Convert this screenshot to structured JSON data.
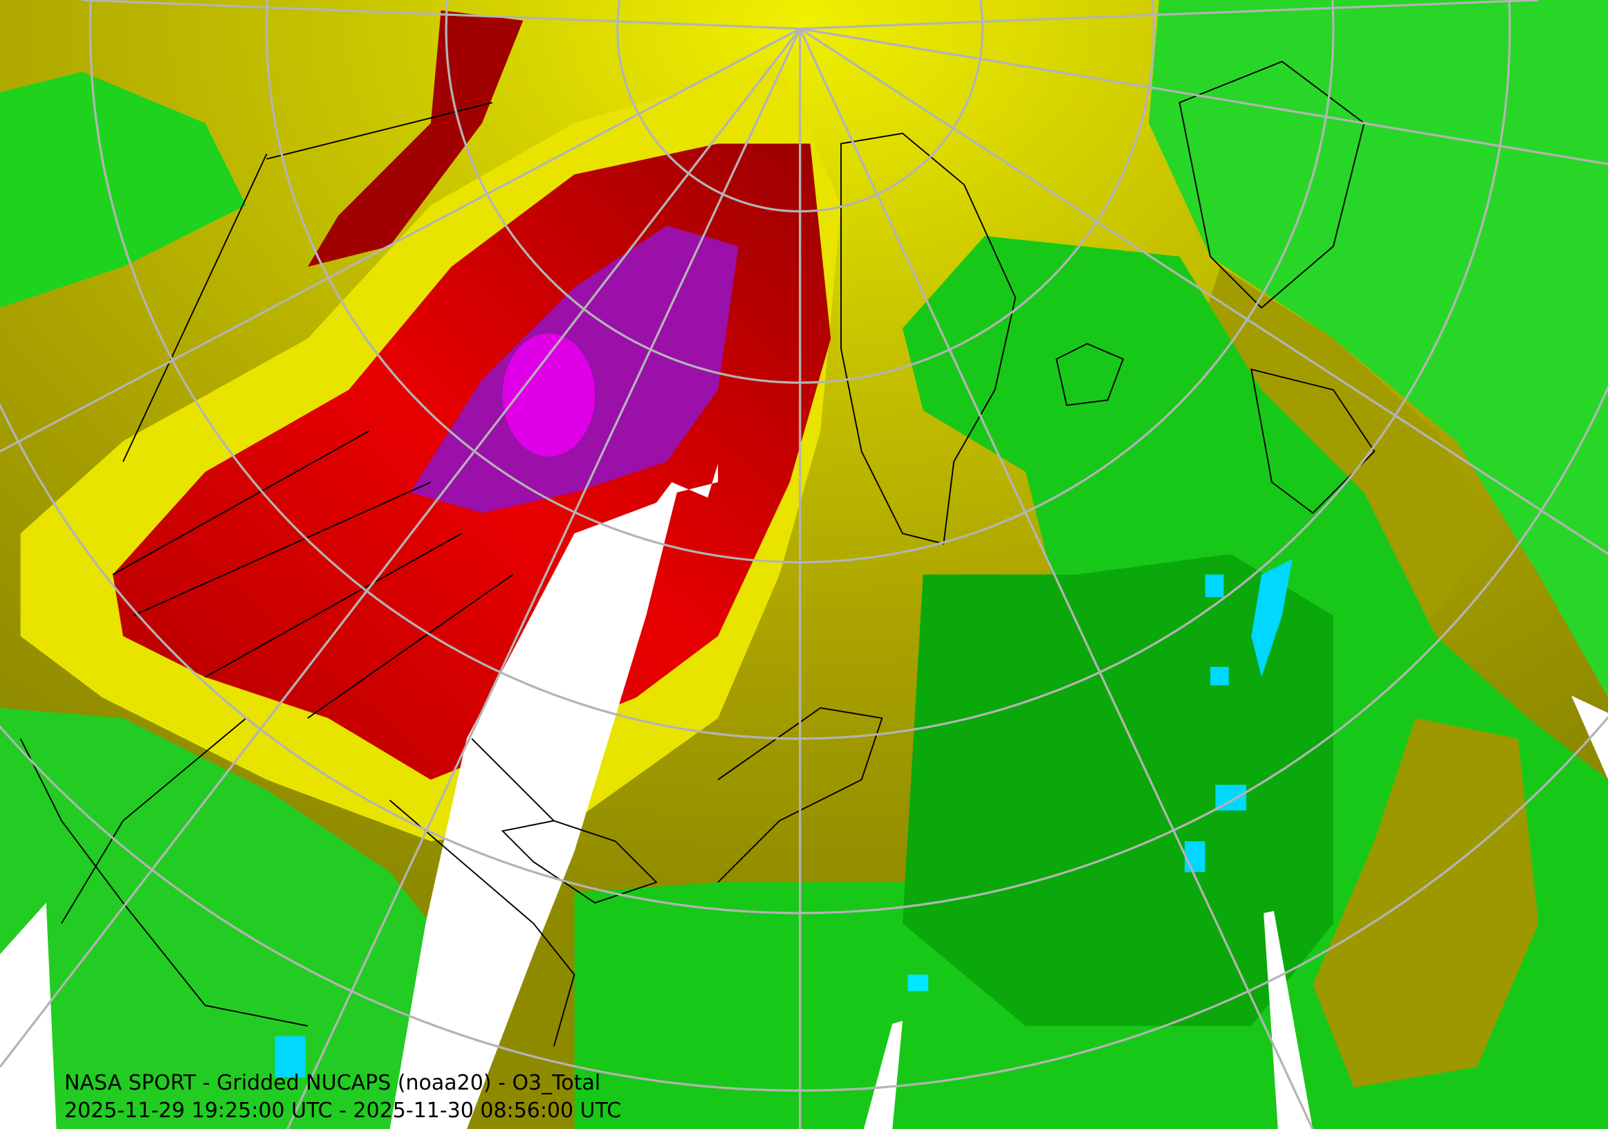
{
  "caption": {
    "line1": "NASA SPORT - Gridded NUCAPS (noaa20) - O3_Total",
    "line2": "2025-11-29 19:25:00 UTC - 2025-11-30 08:56:00 UTC"
  }
}
